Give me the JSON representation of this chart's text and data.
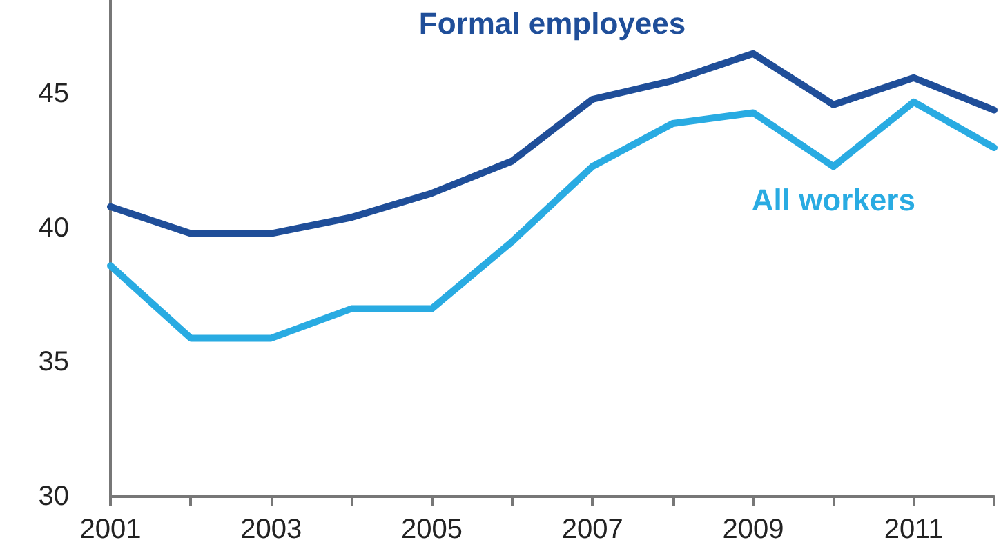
{
  "chart_data": {
    "type": "line",
    "x": [
      2001,
      2002,
      2003,
      2004,
      2005,
      2006,
      2007,
      2008,
      2009,
      2010,
      2011,
      2012
    ],
    "series": [
      {
        "name": "Formal employees",
        "color": "#1f4e99",
        "values": [
          40.8,
          39.8,
          39.8,
          40.4,
          41.3,
          42.5,
          44.8,
          45.5,
          46.5,
          44.6,
          45.6,
          44.4
        ]
      },
      {
        "name": "All workers",
        "color": "#29abe2",
        "values": [
          38.6,
          35.9,
          35.9,
          37.0,
          37.0,
          39.5,
          42.3,
          43.9,
          44.3,
          42.3,
          44.7,
          43.0
        ]
      }
    ],
    "xlim": [
      2001,
      2012
    ],
    "xticks": [
      2001,
      {
        "value": 2002,
        "label": null
      },
      2003,
      {
        "value": 2004,
        "label": null
      },
      2005,
      {
        "value": 2006,
        "label": null
      },
      2007,
      {
        "value": 2008,
        "label": null
      },
      2009,
      {
        "value": 2010,
        "label": null
      },
      2011,
      {
        "value": 2012,
        "label": null
      }
    ],
    "ylim": [
      30,
      48.5
    ],
    "yticks": [
      30,
      35,
      40,
      45
    ],
    "grid": false,
    "legend": false,
    "marker": "none",
    "line_style": "solid"
  }
}
